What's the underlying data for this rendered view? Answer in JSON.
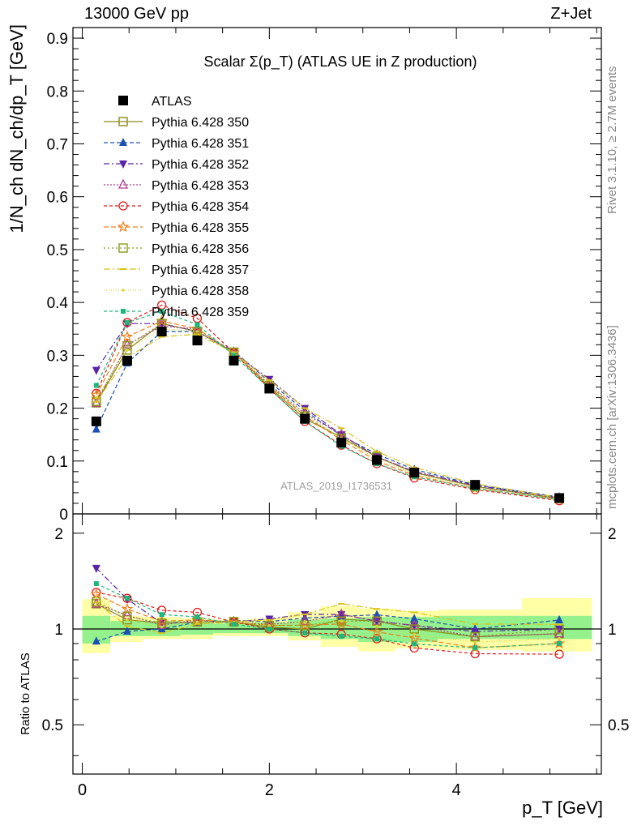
{
  "header": {
    "left": "13000 GeV pp",
    "right": "Z+Jet",
    "side_top": "Rivet 3.1.10, ≥ 2.7M events",
    "side_bottom": "mcplots.cern.ch [arXiv:1306.3436]"
  },
  "chart_data": {
    "type": "scatter",
    "title": "Scalar Σ(p_T) (ATLAS UE in Z production)",
    "watermark": "ATLAS_2019_I1736531",
    "xlabel": "p_T [GeV]",
    "ylabel": "1/N_ch dN_ch/dp_T [GeV]",
    "ratio_ylabel": "Ratio to ATLAS",
    "xlim": [
      -0.1,
      5.55
    ],
    "ylim": [
      0,
      0.92
    ],
    "ratio_ylim": [
      0.35,
      2.3
    ],
    "ratio_log": true,
    "xticks": [
      0,
      2,
      4
    ],
    "yticks": [
      0,
      0.1,
      0.2,
      0.3,
      0.4,
      0.5,
      0.6,
      0.7,
      0.8,
      0.9
    ],
    "ratio_yticks": [
      0.5,
      1,
      2
    ],
    "legend_position": "top-left",
    "x": [
      0.15,
      0.48,
      0.85,
      1.23,
      1.62,
      2.0,
      2.38,
      2.77,
      3.15,
      3.55,
      4.2,
      5.1
    ],
    "band_edges": [
      0,
      0.3,
      0.65,
      1.05,
      1.4,
      1.8,
      2.2,
      2.55,
      2.95,
      3.35,
      3.8,
      4.7,
      5.45
    ],
    "band_inner_lo": [
      0.9,
      0.95,
      0.95,
      0.96,
      0.97,
      0.97,
      0.95,
      0.93,
      0.91,
      0.91,
      0.93,
      0.93
    ],
    "band_inner_hi": [
      1.1,
      1.06,
      1.06,
      1.05,
      1.04,
      1.05,
      1.07,
      1.08,
      1.09,
      1.09,
      1.1,
      1.1
    ],
    "band_outer_lo": [
      0.84,
      0.91,
      0.93,
      0.93,
      0.95,
      0.95,
      0.92,
      0.88,
      0.85,
      0.87,
      0.86,
      0.85
    ],
    "band_outer_hi": [
      1.24,
      1.1,
      1.09,
      1.08,
      1.07,
      1.08,
      1.13,
      1.18,
      1.16,
      1.14,
      1.15,
      1.25
    ],
    "reference": {
      "name": "ATLAS",
      "values": [
        0.175,
        0.29,
        0.345,
        0.328,
        0.29,
        0.237,
        0.18,
        0.135,
        0.102,
        0.078,
        0.055,
        0.03
      ]
    },
    "series": [
      {
        "name": "Pythia 6.428 350",
        "color": "#8c8a1a",
        "marker": "square-open",
        "dash": "",
        "values": [
          0.21,
          0.31,
          0.36,
          0.345,
          0.305,
          0.24,
          0.18,
          0.145,
          0.108,
          0.078,
          0.052,
          0.029
        ]
      },
      {
        "name": "Pythia 6.428 351",
        "color": "#1b4fb3",
        "marker": "triangle-up",
        "dash": "5,3",
        "values": [
          0.16,
          0.285,
          0.345,
          0.345,
          0.308,
          0.25,
          0.195,
          0.148,
          0.113,
          0.084,
          0.055,
          0.032
        ]
      },
      {
        "name": "Pythia 6.428 352",
        "color": "#5a22a8",
        "marker": "triangle-down",
        "dash": "7,3,2,3",
        "values": [
          0.272,
          0.36,
          0.36,
          0.345,
          0.305,
          0.255,
          0.2,
          0.15,
          0.108,
          0.08,
          0.054,
          0.03
        ]
      },
      {
        "name": "Pythia 6.428 353",
        "color": "#b23a8a",
        "marker": "triangle-up-open",
        "dash": "2,2",
        "values": [
          0.21,
          0.32,
          0.355,
          0.35,
          0.305,
          0.245,
          0.19,
          0.15,
          0.108,
          0.08,
          0.052,
          0.029
        ]
      },
      {
        "name": "Pythia 6.428 354",
        "color": "#e01a1a",
        "marker": "circle-open",
        "dash": "4,3",
        "values": [
          0.228,
          0.362,
          0.395,
          0.37,
          0.305,
          0.237,
          0.175,
          0.13,
          0.095,
          0.068,
          0.046,
          0.025
        ]
      },
      {
        "name": "Pythia 6.428 355",
        "color": "#f07f1a",
        "marker": "star-open",
        "dash": "6,3",
        "values": [
          0.225,
          0.335,
          0.365,
          0.35,
          0.305,
          0.243,
          0.185,
          0.14,
          0.1,
          0.073,
          0.048,
          0.027
        ]
      },
      {
        "name": "Pythia 6.428 356",
        "color": "#8a9a1a",
        "marker": "square-open",
        "dash": "2,3",
        "values": [
          0.213,
          0.318,
          0.36,
          0.345,
          0.306,
          0.243,
          0.185,
          0.143,
          0.108,
          0.078,
          0.052,
          0.03
        ]
      },
      {
        "name": "Pythia 6.428 357",
        "color": "#d8c21a",
        "marker": "dash-dot",
        "dash": "8,3,2,3",
        "values": [
          0.212,
          0.296,
          0.335,
          0.34,
          0.305,
          0.253,
          0.2,
          0.162,
          0.118,
          0.088,
          0.057,
          0.031
        ]
      },
      {
        "name": "Pythia 6.428 358",
        "color": "#d6d63a",
        "marker": "dot",
        "dash": "1,2",
        "values": [
          0.22,
          0.31,
          0.35,
          0.345,
          0.305,
          0.243,
          0.19,
          0.143,
          0.104,
          0.075,
          0.05,
          0.028
        ]
      },
      {
        "name": "Pythia 6.428 359",
        "color": "#1ab87a",
        "marker": "square-small",
        "dash": "4,3",
        "values": [
          0.243,
          0.362,
          0.383,
          0.358,
          0.3,
          0.237,
          0.175,
          0.128,
          0.095,
          0.07,
          0.048,
          0.027
        ]
      }
    ]
  }
}
